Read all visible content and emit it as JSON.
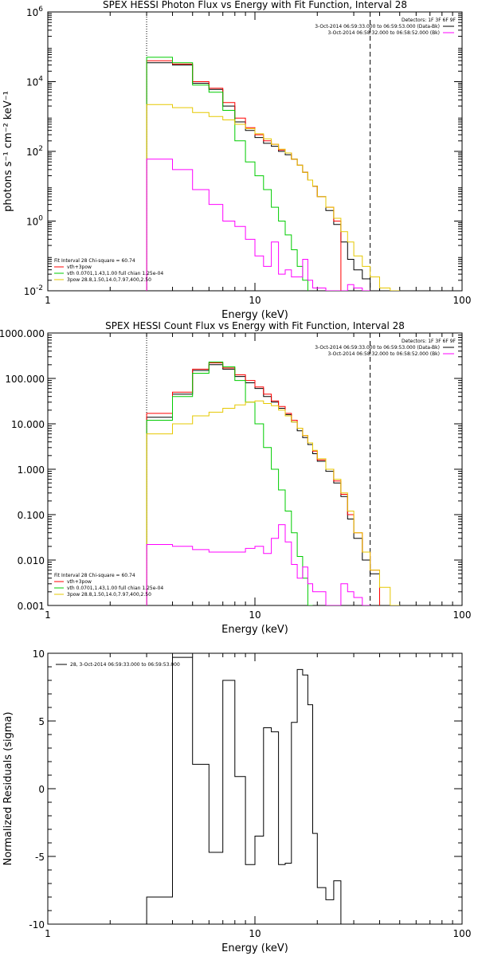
{
  "chart_data": [
    {
      "type": "line",
      "title": "SPEX HESSI Photon Flux vs Energy with Fit Function, Interval 28",
      "xlabel": "Energy (keV)",
      "ylabel": "photons s⁻¹ cm⁻² keV⁻¹",
      "x_scale": "log",
      "y_scale": "log",
      "xlim": [
        1,
        100
      ],
      "ylim": [
        0.01,
        1000000
      ],
      "x_tick_labels": [
        "1",
        "10",
        "100"
      ],
      "y_tick_labels": [
        {
          "base": "10",
          "exp": "-2"
        },
        {
          "base": "10",
          "exp": "0"
        },
        {
          "base": "10",
          "exp": "2"
        },
        {
          "base": "10",
          "exp": "4"
        },
        {
          "base": "10",
          "exp": "6"
        }
      ],
      "y_ticks": [
        0.01,
        1,
        100,
        10000,
        1000000
      ],
      "legend_header": "Detectors: 1F 3F 6F 9F",
      "legend_top": [
        {
          "text": "3-Oct-2014 06:59:33.000 to 06:59:53.000 (Data-Bk)",
          "color": "#000000"
        },
        {
          "text": "3-Oct-2014 06:58:32.000 to 06:58:52.000 (Bk)",
          "color": "#ff00ff"
        }
      ],
      "fit_header": "Fit Interval 28   Chi-square = 60.74",
      "fit_legend": [
        {
          "text": "vth+3pow",
          "color": "#ff0000"
        },
        {
          "text": "vth 0.0701,1.43,1.00  full chian 1.25e-04",
          "color": "#00cc00"
        },
        {
          "text": "3pow 28.8,1.50,14.0,7.97,400,2.50",
          "color": "#e6c800"
        }
      ],
      "vlines": [
        {
          "x": 3.0,
          "style": "dotted"
        },
        {
          "x": 36.0,
          "style": "dashed"
        }
      ],
      "bin_edges": [
        3,
        4,
        5,
        6,
        7,
        8,
        9,
        10,
        11,
        12,
        13,
        14,
        15,
        16,
        17,
        18,
        19,
        20,
        22,
        24,
        26,
        28,
        30,
        33,
        36,
        40,
        45,
        50
      ],
      "series": [
        {
          "color": "#000000",
          "values": [
            35000,
            30000,
            9000,
            6000,
            2000,
            700,
            400,
            250,
            170,
            140,
            100,
            80,
            60,
            40,
            25,
            15,
            10,
            5,
            2,
            0.8,
            0.25,
            0.08,
            0.04,
            0.022
          ]
        },
        {
          "color": "#ff0000",
          "values": [
            40000,
            32000,
            10000,
            6500,
            2500,
            900,
            480,
            300,
            200,
            160,
            110,
            90,
            60,
            40,
            25,
            15,
            10,
            5,
            2.5,
            1
          ]
        },
        {
          "color": "#00cc00",
          "values": [
            50000,
            35000,
            8000,
            5000,
            1500,
            200,
            50,
            20,
            8,
            2.5,
            1,
            0.4,
            0.15,
            0.05,
            0.02
          ]
        },
        {
          "color": "#e6c800",
          "values": [
            2200,
            1800,
            1300,
            1000,
            800,
            600,
            450,
            320,
            230,
            160,
            115,
            90,
            60,
            40,
            25,
            15,
            10,
            5,
            2.5,
            1.2,
            0.5,
            0.25,
            0.1,
            0.05,
            0.025,
            0.012,
            0.006
          ]
        },
        {
          "color": "#ff00ff",
          "values": [
            60,
            30,
            8,
            3,
            1,
            0.7,
            0.3,
            0.1,
            0.05,
            0.25,
            0.03,
            0.04,
            0.025,
            0.025,
            0.08,
            0.02,
            0.012,
            0.012,
            0.01,
            0.01,
            0.008,
            0.015,
            0.012,
            0.01
          ]
        }
      ]
    },
    {
      "type": "line",
      "title": "SPEX HESSI Count Flux vs Energy with Fit Function, Interval 28",
      "xlabel": "Energy (keV)",
      "ylabel": "",
      "x_scale": "log",
      "y_scale": "log",
      "xlim": [
        1,
        100
      ],
      "ylim": [
        0.001,
        1000
      ],
      "x_tick_labels": [
        "1",
        "10",
        "100"
      ],
      "y_tick_labels": [
        "0.001",
        "0.010",
        "0.100",
        "1.000",
        "10.000",
        "100.000",
        "1000.000"
      ],
      "y_ticks": [
        0.001,
        0.01,
        0.1,
        1,
        10,
        100,
        1000
      ],
      "legend_header": "Detectors: 1F 3F 6F 9F",
      "legend_top": [
        {
          "text": "3-Oct-2014 06:59:33.000 to 06:59:53.000 (Data-Bk)",
          "color": "#000000"
        },
        {
          "text": "3-Oct-2014 06:58:32.000 to 06:58:52.000 (Bk)",
          "color": "#ff00ff"
        }
      ],
      "fit_header": "Fit Interval 28   Chi-square = 60.74",
      "fit_legend": [
        {
          "text": "vth+3pow",
          "color": "#ff0000"
        },
        {
          "text": "vth 0.0701,1.43,1.00  full chian 1.25e-04",
          "color": "#00cc00"
        },
        {
          "text": "3pow 28.8,1.50,14.0,7.97,400,2.50",
          "color": "#e6c800"
        }
      ],
      "vlines": [
        {
          "x": 3.0,
          "style": "dotted"
        },
        {
          "x": 36.0,
          "style": "dashed"
        }
      ],
      "bin_edges": [
        3,
        4,
        5,
        6,
        7,
        8,
        9,
        10,
        11,
        12,
        13,
        14,
        15,
        16,
        17,
        18,
        19,
        20,
        22,
        24,
        26,
        28,
        30,
        33,
        36,
        40,
        45,
        50
      ],
      "series": [
        {
          "color": "#000000",
          "values": [
            14,
            45,
            150,
            200,
            160,
            110,
            80,
            60,
            40,
            30,
            22,
            16,
            11,
            7,
            5,
            3.5,
            2.2,
            1.5,
            0.9,
            0.5,
            0.25,
            0.08,
            0.03,
            0.01,
            0.005
          ]
        },
        {
          "color": "#ff0000",
          "values": [
            17,
            50,
            160,
            220,
            170,
            120,
            90,
            65,
            45,
            32,
            24,
            17,
            12,
            8,
            5.5,
            3.8,
            2.5,
            1.6,
            1.0,
            0.55,
            0.28,
            0.1,
            0.04,
            0.015,
            0.006
          ]
        },
        {
          "color": "#00cc00",
          "values": [
            12,
            40,
            130,
            230,
            180,
            90,
            30,
            10,
            3,
            1,
            0.35,
            0.12,
            0.04,
            0.012,
            0.004,
            0.001
          ]
        },
        {
          "color": "#e6c800",
          "values": [
            6,
            10,
            15,
            18,
            22,
            26,
            30,
            32,
            28,
            25,
            20,
            15,
            11,
            8,
            5.5,
            3.8,
            2.6,
            1.7,
            1.0,
            0.6,
            0.3,
            0.12,
            0.04,
            0.015,
            0.006,
            0.0025,
            0.001
          ]
        },
        {
          "color": "#ff00ff",
          "values": [
            0.022,
            0.02,
            0.017,
            0.015,
            0.015,
            0.015,
            0.018,
            0.02,
            0.014,
            0.03,
            0.06,
            0.025,
            0.008,
            0.004,
            0.007,
            0.003,
            0.002,
            0.002,
            0.001,
            0.001,
            0.003,
            0.002,
            0.0015,
            0.001
          ]
        }
      ]
    },
    {
      "type": "line",
      "title": "",
      "xlabel": "Energy (keV)",
      "ylabel": "Normalized Residuals (sigma)",
      "x_scale": "log",
      "y_scale": "linear",
      "xlim": [
        1,
        100
      ],
      "ylim": [
        -10,
        10
      ],
      "x_tick_labels": [
        "1",
        "10",
        "100"
      ],
      "y_tick_labels": [
        "-10",
        "-5",
        "0",
        "5",
        "10"
      ],
      "y_ticks": [
        -10,
        -5,
        0,
        5,
        10
      ],
      "legend": "28,  3-Oct-2014 06:59:33.000 to 06:59:53.000",
      "bin_edges": [
        3,
        4,
        5,
        6,
        7,
        8,
        9,
        10,
        11,
        12,
        13,
        14,
        15,
        16,
        17,
        18,
        19,
        20,
        22,
        24,
        26,
        28,
        30,
        33,
        36
      ],
      "series": [
        {
          "color": "#000000",
          "values": [
            -8,
            9.7,
            1.8,
            -4.7,
            8.0,
            0.9,
            -5.6,
            -3.5,
            4.5,
            4.2,
            -5.6,
            -5.5,
            4.9,
            8.8,
            8.4,
            6.2,
            -3.3,
            -7.3,
            -8.2,
            -6.8,
            -10
          ]
        }
      ]
    }
  ]
}
